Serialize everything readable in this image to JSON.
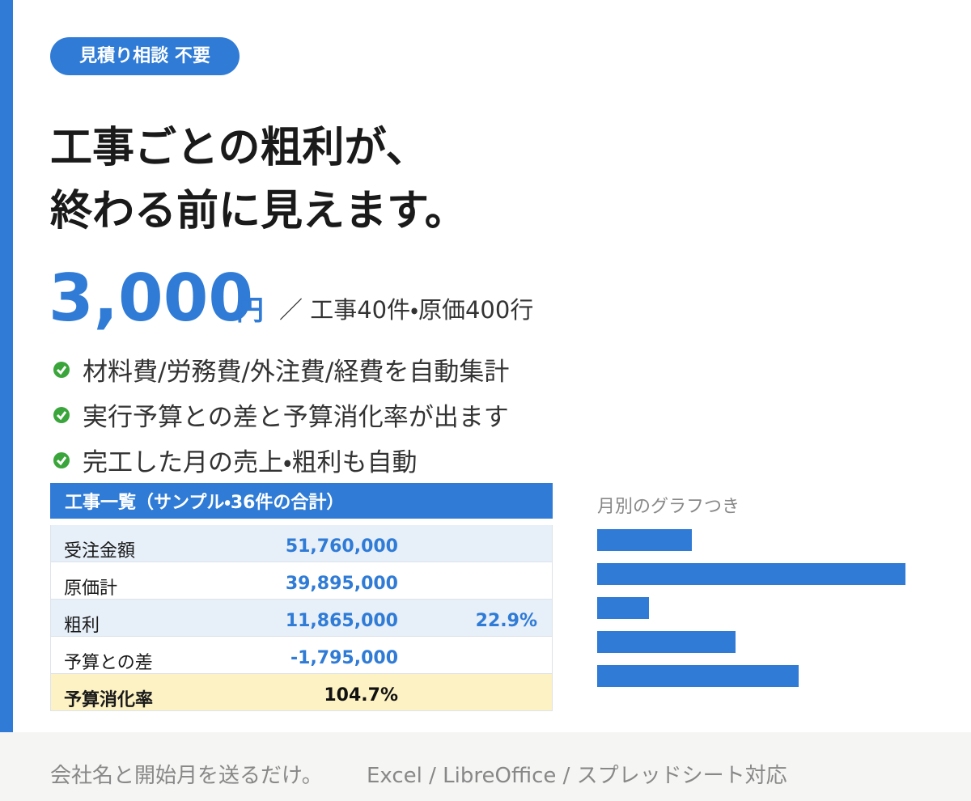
{
  "badge": "見積り相談 不要",
  "headline": [
    "工事ごとの粗利が、",
    "終わる前に見えます。"
  ],
  "price": {
    "amount": "3,000",
    "unit": "円",
    "note": "／ 工事40件・原価400行"
  },
  "features": [
    "材料費/労務費/外注費/経費を自動集計",
    "実行予算との差と予算消化率が出ます",
    "完工した月の売上・粗利も自動"
  ],
  "table": {
    "title": "工事一覧（サンプル・36件の合計）",
    "rows": [
      [
        "受注金額",
        "51,760,000",
        null
      ],
      [
        "原価計",
        "39,895,000",
        null
      ],
      [
        "粗利",
        "11,865,000",
        "22.9%"
      ],
      [
        "予算との差",
        "-1,795,000",
        null
      ],
      [
        "予算消化率",
        "104.7%",
        null
      ]
    ]
  },
  "chart": {
    "type": "bar",
    "title": "月別のグラフつき",
    "values": [
      117,
      381,
      64,
      171,
      249
    ],
    "xlim": [
      0,
      400
    ],
    "color": "#2f7bd6"
  },
  "footer": {
    "left": "会社名と開始月を送るだけ。",
    "right": "Excel / LibreOffice / スプレッドシート対応"
  }
}
